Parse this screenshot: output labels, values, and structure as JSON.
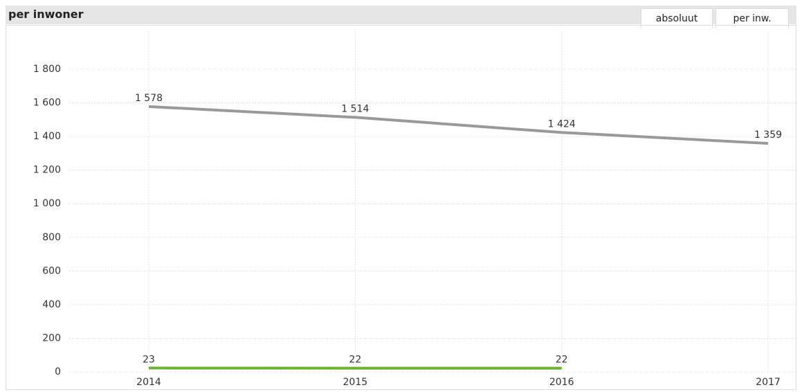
{
  "header": {
    "title": "per inwoner",
    "tabs": [
      "absoluut",
      "per inw."
    ]
  },
  "chart_data": {
    "type": "line",
    "categories": [
      "2014",
      "2015",
      "2016",
      "2017"
    ],
    "series": [
      {
        "color": "#999999",
        "values": [
          1578,
          1514,
          1424,
          1359
        ],
        "value_labels": [
          "1 578",
          "1 514",
          "1 424",
          "1 359"
        ]
      },
      {
        "color": "#6ab42d",
        "values": [
          23,
          22,
          22,
          null
        ]
      }
    ],
    "ylim": [
      0,
      1800
    ],
    "yticks": [
      0,
      200,
      400,
      600,
      800,
      {
        "value": 1000,
        "label": "1 000"
      },
      {
        "value": 1200,
        "label": "1 200"
      },
      {
        "value": 1400,
        "label": "1 400"
      },
      {
        "value": 1600,
        "label": "1 600"
      },
      {
        "value": 1800,
        "label": "1 800"
      }
    ],
    "grid": true
  }
}
